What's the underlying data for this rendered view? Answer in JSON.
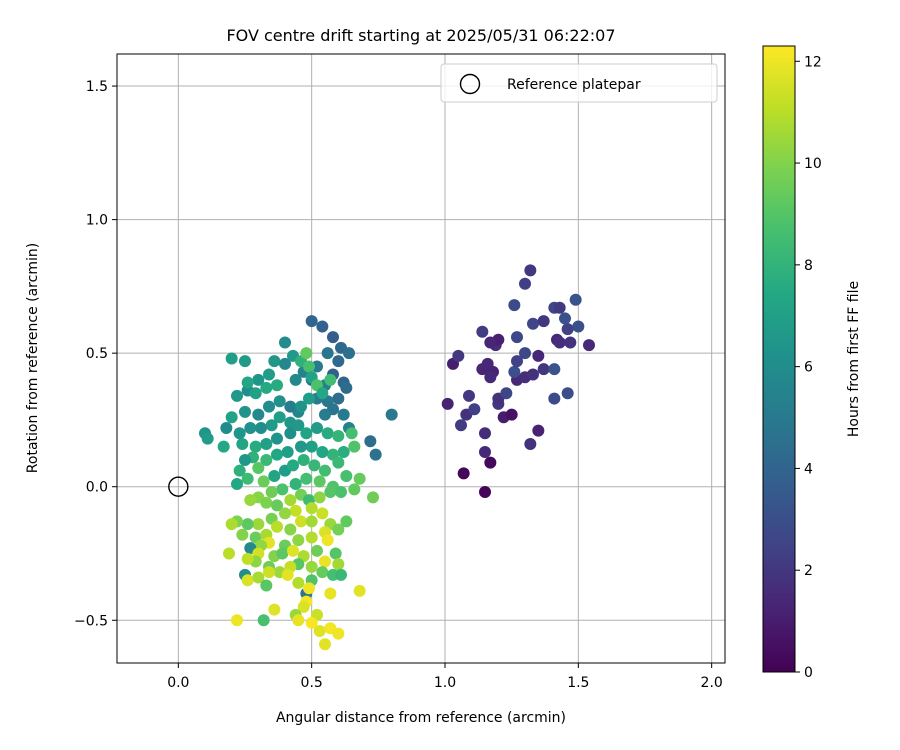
{
  "chart_data": {
    "type": "scatter",
    "title": "FOV centre drift starting at 2025/05/31 06:22:07",
    "xlabel": "Angular distance from reference (arcmin)",
    "ylabel": "Rotation from reference (arcmin)",
    "xlim": [
      -0.23,
      2.05
    ],
    "ylim": [
      -0.66,
      1.62
    ],
    "xticks": [
      0.0,
      0.5,
      1.0,
      1.5,
      2.0
    ],
    "xtick_labels": [
      "0.0",
      "0.5",
      "1.0",
      "1.5",
      "2.0"
    ],
    "yticks": [
      -0.5,
      0.0,
      0.5,
      1.0,
      1.5
    ],
    "ytick_labels": [
      "−0.5",
      "0.0",
      "0.5",
      "1.0",
      "1.5"
    ],
    "grid": true,
    "colormap": "viridis",
    "colorbar": {
      "label": "Hours from first FF file",
      "range": [
        0,
        12.3
      ],
      "ticks": [
        0,
        2,
        4,
        6,
        8,
        10,
        12
      ],
      "tick_labels": [
        "0",
        "2",
        "4",
        "6",
        "8",
        "10",
        "12"
      ]
    },
    "legend": {
      "position": "top-right",
      "entries": [
        {
          "label": "Reference platepar",
          "marker": "open-circle"
        }
      ]
    },
    "reference_point": {
      "x": 0.0,
      "y": 0.0
    },
    "marker_color_encodes": "hours",
    "points": [
      {
        "x": 1.15,
        "y": -0.02,
        "h": 0.1
      },
      {
        "x": 1.07,
        "y": 0.05,
        "h": 0.2
      },
      {
        "x": 1.17,
        "y": 0.09,
        "h": 0.3
      },
      {
        "x": 1.15,
        "y": 0.13,
        "h": 1.5
      },
      {
        "x": 1.32,
        "y": 0.16,
        "h": 1.8
      },
      {
        "x": 1.15,
        "y": 0.2,
        "h": 1.6
      },
      {
        "x": 1.35,
        "y": 0.21,
        "h": 1.2
      },
      {
        "x": 1.06,
        "y": 0.23,
        "h": 2.2
      },
      {
        "x": 1.22,
        "y": 0.26,
        "h": 1.0
      },
      {
        "x": 1.25,
        "y": 0.27,
        "h": 0.6
      },
      {
        "x": 1.08,
        "y": 0.27,
        "h": 1.8
      },
      {
        "x": 1.11,
        "y": 0.29,
        "h": 2.3
      },
      {
        "x": 1.01,
        "y": 0.31,
        "h": 1.2
      },
      {
        "x": 1.2,
        "y": 0.31,
        "h": 2.0
      },
      {
        "x": 1.2,
        "y": 0.33,
        "h": 1.8
      },
      {
        "x": 1.09,
        "y": 0.34,
        "h": 2.0
      },
      {
        "x": 1.23,
        "y": 0.35,
        "h": 2.6
      },
      {
        "x": 1.41,
        "y": 0.33,
        "h": 2.8
      },
      {
        "x": 1.46,
        "y": 0.35,
        "h": 2.9
      },
      {
        "x": 1.27,
        "y": 0.4,
        "h": 1.4
      },
      {
        "x": 1.3,
        "y": 0.41,
        "h": 1.6
      },
      {
        "x": 1.33,
        "y": 0.42,
        "h": 1.8
      },
      {
        "x": 1.37,
        "y": 0.44,
        "h": 2.0
      },
      {
        "x": 1.26,
        "y": 0.43,
        "h": 3.0
      },
      {
        "x": 1.41,
        "y": 0.44,
        "h": 3.2
      },
      {
        "x": 1.18,
        "y": 0.43,
        "h": 1.2
      },
      {
        "x": 1.14,
        "y": 0.44,
        "h": 1.3
      },
      {
        "x": 1.17,
        "y": 0.41,
        "h": 1.5
      },
      {
        "x": 1.16,
        "y": 0.46,
        "h": 1.4
      },
      {
        "x": 1.27,
        "y": 0.47,
        "h": 2.4
      },
      {
        "x": 1.35,
        "y": 0.49,
        "h": 1.4
      },
      {
        "x": 1.3,
        "y": 0.5,
        "h": 2.7
      },
      {
        "x": 1.03,
        "y": 0.46,
        "h": 1.0
      },
      {
        "x": 1.05,
        "y": 0.49,
        "h": 2.0
      },
      {
        "x": 1.19,
        "y": 0.53,
        "h": 1.6
      },
      {
        "x": 1.2,
        "y": 0.55,
        "h": 1.1
      },
      {
        "x": 1.17,
        "y": 0.54,
        "h": 1.3
      },
      {
        "x": 1.27,
        "y": 0.56,
        "h": 2.7
      },
      {
        "x": 1.14,
        "y": 0.58,
        "h": 2.2
      },
      {
        "x": 1.42,
        "y": 0.55,
        "h": 1.4
      },
      {
        "x": 1.43,
        "y": 0.54,
        "h": 1.7
      },
      {
        "x": 1.47,
        "y": 0.54,
        "h": 1.9
      },
      {
        "x": 1.33,
        "y": 0.61,
        "h": 2.6
      },
      {
        "x": 1.37,
        "y": 0.62,
        "h": 2.0
      },
      {
        "x": 1.46,
        "y": 0.59,
        "h": 2.4
      },
      {
        "x": 1.5,
        "y": 0.6,
        "h": 3.0
      },
      {
        "x": 1.45,
        "y": 0.63,
        "h": 3.1
      },
      {
        "x": 1.41,
        "y": 0.67,
        "h": 2.6
      },
      {
        "x": 1.43,
        "y": 0.67,
        "h": 2.1
      },
      {
        "x": 1.26,
        "y": 0.68,
        "h": 2.8
      },
      {
        "x": 1.49,
        "y": 0.7,
        "h": 3.2
      },
      {
        "x": 1.3,
        "y": 0.76,
        "h": 2.3
      },
      {
        "x": 1.32,
        "y": 0.81,
        "h": 2.0
      },
      {
        "x": 1.54,
        "y": 0.53,
        "h": 1.5
      },
      {
        "x": 0.5,
        "y": 0.62,
        "h": 4.0
      },
      {
        "x": 0.54,
        "y": 0.6,
        "h": 3.9
      },
      {
        "x": 0.58,
        "y": 0.56,
        "h": 3.7
      },
      {
        "x": 0.61,
        "y": 0.52,
        "h": 4.1
      },
      {
        "x": 0.64,
        "y": 0.5,
        "h": 4.5
      },
      {
        "x": 0.56,
        "y": 0.5,
        "h": 4.8
      },
      {
        "x": 0.6,
        "y": 0.47,
        "h": 4.2
      },
      {
        "x": 0.52,
        "y": 0.45,
        "h": 5.0
      },
      {
        "x": 0.58,
        "y": 0.42,
        "h": 3.8
      },
      {
        "x": 0.62,
        "y": 0.39,
        "h": 4.0
      },
      {
        "x": 0.63,
        "y": 0.37,
        "h": 4.3
      },
      {
        "x": 0.55,
        "y": 0.38,
        "h": 5.3
      },
      {
        "x": 0.5,
        "y": 0.4,
        "h": 4.6
      },
      {
        "x": 0.47,
        "y": 0.43,
        "h": 5.5
      },
      {
        "x": 0.44,
        "y": 0.4,
        "h": 5.8
      },
      {
        "x": 0.6,
        "y": 0.33,
        "h": 4.4
      },
      {
        "x": 0.56,
        "y": 0.32,
        "h": 4.9
      },
      {
        "x": 0.52,
        "y": 0.33,
        "h": 5.1
      },
      {
        "x": 0.58,
        "y": 0.29,
        "h": 4.7
      },
      {
        "x": 0.62,
        "y": 0.27,
        "h": 5.0
      },
      {
        "x": 0.8,
        "y": 0.27,
        "h": 4.9
      },
      {
        "x": 0.72,
        "y": 0.17,
        "h": 4.4
      },
      {
        "x": 0.74,
        "y": 0.12,
        "h": 4.6
      },
      {
        "x": 0.64,
        "y": 0.22,
        "h": 5.4
      },
      {
        "x": 0.55,
        "y": 0.27,
        "h": 5.2
      },
      {
        "x": 0.45,
        "y": 0.28,
        "h": 5.6
      },
      {
        "x": 0.42,
        "y": 0.3,
        "h": 5.2
      },
      {
        "x": 0.38,
        "y": 0.32,
        "h": 6.2
      },
      {
        "x": 0.34,
        "y": 0.3,
        "h": 6.0
      },
      {
        "x": 0.3,
        "y": 0.27,
        "h": 5.8
      },
      {
        "x": 0.25,
        "y": 0.28,
        "h": 6.3
      },
      {
        "x": 0.26,
        "y": 0.36,
        "h": 6.1
      },
      {
        "x": 0.3,
        "y": 0.4,
        "h": 6.4
      },
      {
        "x": 0.34,
        "y": 0.42,
        "h": 6.8
      },
      {
        "x": 0.36,
        "y": 0.47,
        "h": 6.5
      },
      {
        "x": 0.4,
        "y": 0.46,
        "h": 5.7
      },
      {
        "x": 0.4,
        "y": 0.54,
        "h": 5.9
      },
      {
        "x": 0.43,
        "y": 0.49,
        "h": 6.6
      },
      {
        "x": 0.25,
        "y": 0.47,
        "h": 6.7
      },
      {
        "x": 0.2,
        "y": 0.48,
        "h": 6.9
      },
      {
        "x": 0.26,
        "y": 0.39,
        "h": 7.3
      },
      {
        "x": 0.22,
        "y": 0.34,
        "h": 6.6
      },
      {
        "x": 0.29,
        "y": 0.35,
        "h": 7.0
      },
      {
        "x": 0.33,
        "y": 0.37,
        "h": 7.5
      },
      {
        "x": 0.37,
        "y": 0.38,
        "h": 7.6
      },
      {
        "x": 0.46,
        "y": 0.47,
        "h": 7.9
      },
      {
        "x": 0.48,
        "y": 0.5,
        "h": 9.3
      },
      {
        "x": 0.49,
        "y": 0.45,
        "h": 8.7
      },
      {
        "x": 0.5,
        "y": 0.41,
        "h": 7.1
      },
      {
        "x": 0.52,
        "y": 0.38,
        "h": 8.8
      },
      {
        "x": 0.54,
        "y": 0.35,
        "h": 7.4
      },
      {
        "x": 0.57,
        "y": 0.4,
        "h": 8.5
      },
      {
        "x": 0.49,
        "y": 0.33,
        "h": 6.9
      },
      {
        "x": 0.46,
        "y": 0.3,
        "h": 6.3
      },
      {
        "x": 0.42,
        "y": 0.24,
        "h": 6.5
      },
      {
        "x": 0.38,
        "y": 0.26,
        "h": 6.9
      },
      {
        "x": 0.35,
        "y": 0.23,
        "h": 6.7
      },
      {
        "x": 0.31,
        "y": 0.22,
        "h": 6.0
      },
      {
        "x": 0.27,
        "y": 0.22,
        "h": 6.2
      },
      {
        "x": 0.23,
        "y": 0.2,
        "h": 6.4
      },
      {
        "x": 0.18,
        "y": 0.22,
        "h": 5.9
      },
      {
        "x": 0.1,
        "y": 0.2,
        "h": 6.4
      },
      {
        "x": 0.11,
        "y": 0.18,
        "h": 6.8
      },
      {
        "x": 0.17,
        "y": 0.15,
        "h": 7.4
      },
      {
        "x": 0.2,
        "y": 0.26,
        "h": 7.1
      },
      {
        "x": 0.24,
        "y": 0.16,
        "h": 7.2
      },
      {
        "x": 0.29,
        "y": 0.15,
        "h": 7.6
      },
      {
        "x": 0.33,
        "y": 0.16,
        "h": 7.0
      },
      {
        "x": 0.37,
        "y": 0.18,
        "h": 6.3
      },
      {
        "x": 0.42,
        "y": 0.2,
        "h": 6.1
      },
      {
        "x": 0.45,
        "y": 0.23,
        "h": 6.6
      },
      {
        "x": 0.48,
        "y": 0.2,
        "h": 7.2
      },
      {
        "x": 0.52,
        "y": 0.22,
        "h": 6.8
      },
      {
        "x": 0.56,
        "y": 0.2,
        "h": 7.6
      },
      {
        "x": 0.6,
        "y": 0.19,
        "h": 8.1
      },
      {
        "x": 0.65,
        "y": 0.2,
        "h": 8.6
      },
      {
        "x": 0.66,
        "y": 0.15,
        "h": 8.9
      },
      {
        "x": 0.62,
        "y": 0.13,
        "h": 7.7
      },
      {
        "x": 0.58,
        "y": 0.12,
        "h": 8.0
      },
      {
        "x": 0.54,
        "y": 0.13,
        "h": 7.3
      },
      {
        "x": 0.5,
        "y": 0.15,
        "h": 7.0
      },
      {
        "x": 0.46,
        "y": 0.15,
        "h": 6.6
      },
      {
        "x": 0.41,
        "y": 0.13,
        "h": 6.9
      },
      {
        "x": 0.37,
        "y": 0.12,
        "h": 7.3
      },
      {
        "x": 0.33,
        "y": 0.1,
        "h": 8.3
      },
      {
        "x": 0.28,
        "y": 0.11,
        "h": 7.9
      },
      {
        "x": 0.25,
        "y": 0.1,
        "h": 6.5
      },
      {
        "x": 0.23,
        "y": 0.06,
        "h": 7.8
      },
      {
        "x": 0.26,
        "y": 0.03,
        "h": 8.4
      },
      {
        "x": 0.22,
        "y": 0.01,
        "h": 7.4
      },
      {
        "x": 0.3,
        "y": 0.07,
        "h": 9.1
      },
      {
        "x": 0.32,
        "y": 0.02,
        "h": 9.5
      },
      {
        "x": 0.36,
        "y": 0.04,
        "h": 7.2
      },
      {
        "x": 0.4,
        "y": 0.06,
        "h": 6.8
      },
      {
        "x": 0.43,
        "y": 0.08,
        "h": 7.5
      },
      {
        "x": 0.47,
        "y": 0.1,
        "h": 7.9
      },
      {
        "x": 0.51,
        "y": 0.08,
        "h": 8.2
      },
      {
        "x": 0.55,
        "y": 0.06,
        "h": 8.5
      },
      {
        "x": 0.6,
        "y": 0.09,
        "h": 8.3
      },
      {
        "x": 0.63,
        "y": 0.04,
        "h": 8.7
      },
      {
        "x": 0.58,
        "y": 0.0,
        "h": 8.9
      },
      {
        "x": 0.53,
        "y": 0.02,
        "h": 9.2
      },
      {
        "x": 0.48,
        "y": 0.03,
        "h": 8.6
      },
      {
        "x": 0.44,
        "y": 0.01,
        "h": 8.0
      },
      {
        "x": 0.39,
        "y": -0.01,
        "h": 8.8
      },
      {
        "x": 0.35,
        "y": -0.02,
        "h": 9.6
      },
      {
        "x": 0.3,
        "y": -0.04,
        "h": 10.1
      },
      {
        "x": 0.27,
        "y": -0.05,
        "h": 10.4
      },
      {
        "x": 0.33,
        "y": -0.06,
        "h": 9.9
      },
      {
        "x": 0.37,
        "y": -0.07,
        "h": 9.4
      },
      {
        "x": 0.42,
        "y": -0.05,
        "h": 10.6
      },
      {
        "x": 0.46,
        "y": -0.03,
        "h": 9.7
      },
      {
        "x": 0.49,
        "y": -0.05,
        "h": 8.4
      },
      {
        "x": 0.53,
        "y": -0.04,
        "h": 10.2
      },
      {
        "x": 0.57,
        "y": -0.02,
        "h": 9.0
      },
      {
        "x": 0.61,
        "y": -0.02,
        "h": 8.8
      },
      {
        "x": 0.66,
        "y": -0.01,
        "h": 9.3
      },
      {
        "x": 0.68,
        "y": 0.03,
        "h": 9.4
      },
      {
        "x": 0.73,
        "y": -0.04,
        "h": 9.6
      },
      {
        "x": 0.5,
        "y": -0.08,
        "h": 10.9
      },
      {
        "x": 0.44,
        "y": -0.09,
        "h": 11.2
      },
      {
        "x": 0.4,
        "y": -0.1,
        "h": 10.3
      },
      {
        "x": 0.35,
        "y": -0.12,
        "h": 9.8
      },
      {
        "x": 0.3,
        "y": -0.14,
        "h": 10.5
      },
      {
        "x": 0.26,
        "y": -0.14,
        "h": 9.2
      },
      {
        "x": 0.22,
        "y": -0.13,
        "h": 9.9
      },
      {
        "x": 0.2,
        "y": -0.14,
        "h": 10.8
      },
      {
        "x": 0.24,
        "y": -0.18,
        "h": 10.0
      },
      {
        "x": 0.29,
        "y": -0.19,
        "h": 9.5
      },
      {
        "x": 0.33,
        "y": -0.18,
        "h": 10.7
      },
      {
        "x": 0.37,
        "y": -0.15,
        "h": 11.0
      },
      {
        "x": 0.42,
        "y": -0.16,
        "h": 10.1
      },
      {
        "x": 0.46,
        "y": -0.13,
        "h": 11.4
      },
      {
        "x": 0.5,
        "y": -0.13,
        "h": 10.6
      },
      {
        "x": 0.54,
        "y": -0.1,
        "h": 11.3
      },
      {
        "x": 0.57,
        "y": -0.14,
        "h": 10.4
      },
      {
        "x": 0.6,
        "y": -0.16,
        "h": 9.7
      },
      {
        "x": 0.63,
        "y": -0.13,
        "h": 9.3
      },
      {
        "x": 0.55,
        "y": -0.17,
        "h": 11.6
      },
      {
        "x": 0.5,
        "y": -0.19,
        "h": 10.9
      },
      {
        "x": 0.45,
        "y": -0.2,
        "h": 10.2
      },
      {
        "x": 0.4,
        "y": -0.22,
        "h": 9.5
      },
      {
        "x": 0.34,
        "y": -0.21,
        "h": 11.8
      },
      {
        "x": 0.31,
        "y": -0.22,
        "h": 10.3
      },
      {
        "x": 0.27,
        "y": -0.23,
        "h": 5.8
      },
      {
        "x": 0.3,
        "y": -0.25,
        "h": 11.5
      },
      {
        "x": 0.36,
        "y": -0.26,
        "h": 10.0
      },
      {
        "x": 0.39,
        "y": -0.25,
        "h": 9.2
      },
      {
        "x": 0.43,
        "y": -0.24,
        "h": 11.7
      },
      {
        "x": 0.47,
        "y": -0.26,
        "h": 10.8
      },
      {
        "x": 0.52,
        "y": -0.24,
        "h": 9.6
      },
      {
        "x": 0.56,
        "y": -0.2,
        "h": 12.0
      },
      {
        "x": 0.59,
        "y": -0.25,
        "h": 9.0
      },
      {
        "x": 0.6,
        "y": -0.29,
        "h": 10.6
      },
      {
        "x": 0.55,
        "y": -0.28,
        "h": 11.9
      },
      {
        "x": 0.5,
        "y": -0.3,
        "h": 10.4
      },
      {
        "x": 0.45,
        "y": -0.29,
        "h": 9.1
      },
      {
        "x": 0.42,
        "y": -0.3,
        "h": 11.2
      },
      {
        "x": 0.38,
        "y": -0.32,
        "h": 10.5
      },
      {
        "x": 0.34,
        "y": -0.3,
        "h": 9.6
      },
      {
        "x": 0.29,
        "y": -0.28,
        "h": 10.2
      },
      {
        "x": 0.26,
        "y": -0.27,
        "h": 11.1
      },
      {
        "x": 0.19,
        "y": -0.25,
        "h": 11.0
      },
      {
        "x": 0.25,
        "y": -0.33,
        "h": 6.0
      },
      {
        "x": 0.26,
        "y": -0.35,
        "h": 11.6
      },
      {
        "x": 0.3,
        "y": -0.34,
        "h": 10.7
      },
      {
        "x": 0.34,
        "y": -0.32,
        "h": 11.4
      },
      {
        "x": 0.41,
        "y": -0.33,
        "h": 11.8
      },
      {
        "x": 0.45,
        "y": -0.36,
        "h": 10.9
      },
      {
        "x": 0.5,
        "y": -0.35,
        "h": 8.9
      },
      {
        "x": 0.54,
        "y": -0.32,
        "h": 9.4
      },
      {
        "x": 0.58,
        "y": -0.33,
        "h": 8.6
      },
      {
        "x": 0.61,
        "y": -0.33,
        "h": 8.3
      },
      {
        "x": 0.33,
        "y": -0.37,
        "h": 9.1
      },
      {
        "x": 0.48,
        "y": -0.4,
        "h": 4.7
      },
      {
        "x": 0.49,
        "y": -0.38,
        "h": 12.0
      },
      {
        "x": 0.57,
        "y": -0.4,
        "h": 11.9
      },
      {
        "x": 0.68,
        "y": -0.39,
        "h": 11.8
      },
      {
        "x": 0.48,
        "y": -0.43,
        "h": 12.1
      },
      {
        "x": 0.47,
        "y": -0.45,
        "h": 11.6
      },
      {
        "x": 0.36,
        "y": -0.46,
        "h": 11.7
      },
      {
        "x": 0.44,
        "y": -0.48,
        "h": 10.4
      },
      {
        "x": 0.45,
        "y": -0.5,
        "h": 11.9
      },
      {
        "x": 0.52,
        "y": -0.48,
        "h": 11.3
      },
      {
        "x": 0.32,
        "y": -0.5,
        "h": 8.7
      },
      {
        "x": 0.22,
        "y": -0.5,
        "h": 12.0
      },
      {
        "x": 0.5,
        "y": -0.51,
        "h": 12.2
      },
      {
        "x": 0.53,
        "y": -0.54,
        "h": 11.7
      },
      {
        "x": 0.57,
        "y": -0.53,
        "h": 12.1
      },
      {
        "x": 0.6,
        "y": -0.55,
        "h": 12.0
      },
      {
        "x": 0.55,
        "y": -0.59,
        "h": 11.8
      }
    ]
  }
}
